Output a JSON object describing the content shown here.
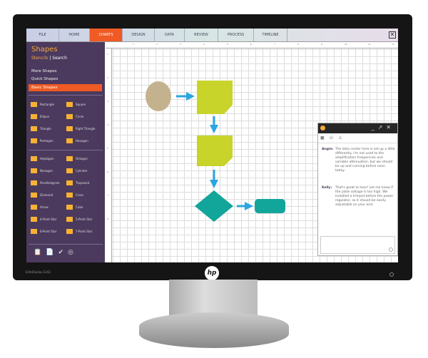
{
  "monitor": {
    "model": "EliteDisplay E242",
    "brand": "hp"
  },
  "tabs": [
    {
      "label": "FILE"
    },
    {
      "label": "HOME"
    },
    {
      "label": "CHARTS",
      "active": true
    },
    {
      "label": "DESIGN"
    },
    {
      "label": "DATA"
    },
    {
      "label": "REVIEW"
    },
    {
      "label": "PROCESS"
    },
    {
      "label": "TIMELINE"
    }
  ],
  "close_label": "✕",
  "sidebar": {
    "title": "Shapes",
    "stencils": "Stencils",
    "search": "Search",
    "links": [
      "More Shapes",
      "Quick Shapes"
    ],
    "active": "Basic Shapes",
    "shapes": [
      "Rectangle",
      "Square",
      "Ellipse",
      "Circle",
      "Triangle",
      "Right Triangle",
      "Pentagon",
      "Hexagon",
      "Heptagon",
      "Octagon",
      "Nonagon",
      "Cylinder",
      "Parallelogram",
      "Trapezoid",
      "Diamond",
      "Cross",
      "Arrow",
      "Cube",
      "4-Point Star",
      "5-Point Star",
      "6-Point Star",
      "7-Point Star"
    ]
  },
  "ruler": [
    "1",
    "2",
    "3",
    "4",
    "5",
    "6",
    "7",
    "8",
    "9",
    "10",
    "11",
    "12"
  ],
  "ruler_left": [
    "1",
    "2",
    "3",
    "4",
    "5",
    "6",
    "7",
    "8"
  ],
  "chat": {
    "messages": [
      {
        "from": "Angie:",
        "text": "The data center here is set up a little differently. I'm not used to the amplification frequencies and variable attenuation, but we should be up and running before noon today."
      },
      {
        "from": "Kelly:",
        "text": "That's great to hear! Let me know if the plate voltage is too high. We installed a trimpot before the power regulator, so it should be easily adjustable on your end."
      }
    ]
  },
  "colors": {
    "accent": "#f05a24",
    "sidebar": "#4b3a5e",
    "shape_yellow": "#c8d42a",
    "shape_teal": "#12a59a",
    "shape_tan": "#c4b28f",
    "arrow": "#2aa6e0"
  }
}
